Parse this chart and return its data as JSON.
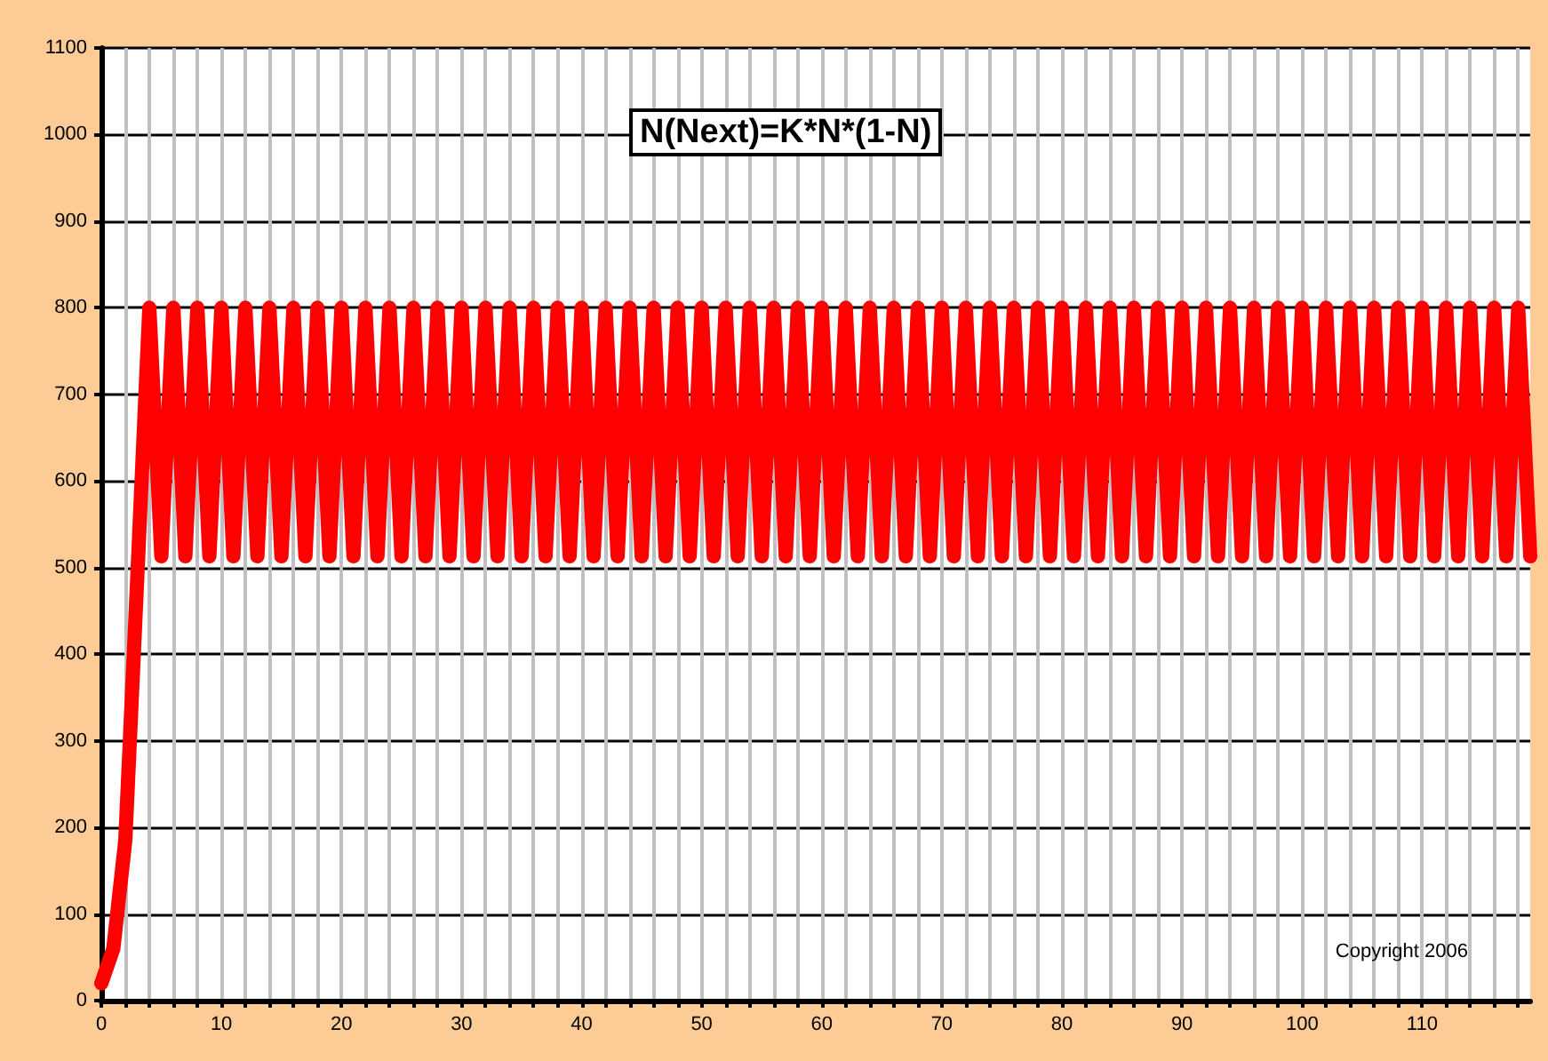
{
  "chart_data": {
    "type": "line",
    "title": "N(Next)=K*N*(1-N)",
    "annotations": [
      "Copyright 2006"
    ],
    "x": [
      0,
      1,
      2,
      3,
      4,
      5,
      6,
      7,
      8,
      9,
      10,
      11,
      12,
      13,
      14,
      15,
      16,
      17,
      18,
      19,
      20,
      21,
      22,
      23,
      24,
      25,
      26,
      27,
      28,
      29,
      30,
      31,
      32,
      33,
      34,
      35,
      36,
      37,
      38,
      39,
      40,
      41,
      42,
      43,
      44,
      45,
      46,
      47,
      48,
      49,
      50,
      51,
      52,
      53,
      54,
      55,
      56,
      57,
      58,
      59,
      60,
      61,
      62,
      63,
      64,
      65,
      66,
      67,
      68,
      69,
      70,
      71,
      72,
      73,
      74,
      75,
      76,
      77,
      78,
      79,
      80,
      81,
      82,
      83,
      84,
      85,
      86,
      87,
      88,
      89,
      90,
      91,
      92,
      93,
      94,
      95,
      96,
      97,
      98,
      99,
      100,
      101,
      102,
      103,
      104,
      105,
      106,
      107,
      108,
      109,
      110,
      111,
      112,
      113,
      114,
      115,
      116,
      117,
      118,
      119
    ],
    "series": [
      {
        "color": "#ff0000",
        "values": [
          20,
          60,
          185,
          490,
          800,
          513,
          800,
          513,
          800,
          513,
          800,
          513,
          800,
          513,
          800,
          513,
          800,
          513,
          800,
          513,
          800,
          513,
          800,
          513,
          800,
          513,
          800,
          513,
          800,
          513,
          800,
          513,
          800,
          513,
          800,
          513,
          800,
          513,
          800,
          513,
          800,
          513,
          800,
          513,
          800,
          513,
          800,
          513,
          800,
          513,
          800,
          513,
          800,
          513,
          800,
          513,
          800,
          513,
          800,
          513,
          800,
          513,
          800,
          513,
          800,
          513,
          800,
          513,
          800,
          513,
          800,
          513,
          800,
          513,
          800,
          513,
          800,
          513,
          800,
          513,
          800,
          513,
          800,
          513,
          800,
          513,
          800,
          513,
          800,
          513,
          800,
          513,
          800,
          513,
          800,
          513,
          800,
          513,
          800,
          513,
          800,
          513,
          800,
          513,
          800,
          513,
          800,
          513,
          800,
          513,
          800,
          513,
          800,
          513,
          800,
          513,
          800,
          513,
          800,
          513
        ]
      }
    ],
    "xlim": [
      0,
      119
    ],
    "xticks": [
      0,
      {
        "value": 2,
        "label": null
      },
      {
        "value": 4,
        "label": null
      },
      {
        "value": 6,
        "label": null
      },
      {
        "value": 8,
        "label": null
      },
      10,
      {
        "value": 12,
        "label": null
      },
      {
        "value": 14,
        "label": null
      },
      {
        "value": 16,
        "label": null
      },
      {
        "value": 18,
        "label": null
      },
      20,
      {
        "value": 22,
        "label": null
      },
      {
        "value": 24,
        "label": null
      },
      {
        "value": 26,
        "label": null
      },
      {
        "value": 28,
        "label": null
      },
      30,
      {
        "value": 32,
        "label": null
      },
      {
        "value": 34,
        "label": null
      },
      {
        "value": 36,
        "label": null
      },
      {
        "value": 38,
        "label": null
      },
      40,
      {
        "value": 42,
        "label": null
      },
      {
        "value": 44,
        "label": null
      },
      {
        "value": 46,
        "label": null
      },
      {
        "value": 48,
        "label": null
      },
      50,
      {
        "value": 52,
        "label": null
      },
      {
        "value": 54,
        "label": null
      },
      {
        "value": 56,
        "label": null
      },
      {
        "value": 58,
        "label": null
      },
      60,
      {
        "value": 62,
        "label": null
      },
      {
        "value": 64,
        "label": null
      },
      {
        "value": 66,
        "label": null
      },
      {
        "value": 68,
        "label": null
      },
      70,
      {
        "value": 72,
        "label": null
      },
      {
        "value": 74,
        "label": null
      },
      {
        "value": 76,
        "label": null
      },
      {
        "value": 78,
        "label": null
      },
      80,
      {
        "value": 82,
        "label": null
      },
      {
        "value": 84,
        "label": null
      },
      {
        "value": 86,
        "label": null
      },
      {
        "value": 88,
        "label": null
      },
      90,
      {
        "value": 92,
        "label": null
      },
      {
        "value": 94,
        "label": null
      },
      {
        "value": 96,
        "label": null
      },
      {
        "value": 98,
        "label": null
      },
      100,
      {
        "value": 102,
        "label": null
      },
      {
        "value": 104,
        "label": null
      },
      {
        "value": 106,
        "label": null
      },
      {
        "value": 108,
        "label": null
      },
      110,
      {
        "value": 112,
        "label": null
      },
      {
        "value": 114,
        "label": null
      },
      {
        "value": 116,
        "label": null
      },
      {
        "value": 118,
        "label": null
      }
    ],
    "ylim": [
      0,
      1100
    ],
    "yticks": [
      0,
      100,
      200,
      300,
      400,
      500,
      600,
      700,
      800,
      900,
      1000,
      1100
    ],
    "grid": true,
    "line_style": "solid"
  }
}
